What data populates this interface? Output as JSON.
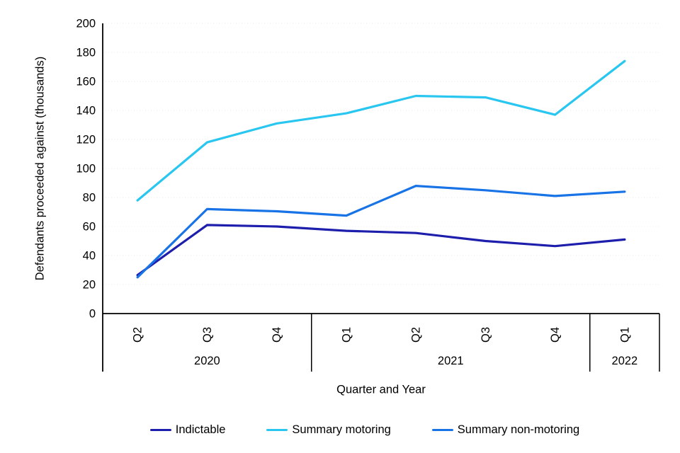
{
  "chart_data": {
    "type": "line",
    "title": "",
    "xlabel": "Quarter and Year",
    "ylabel": "Defendants proceeded against (thousands)",
    "ylim": [
      0,
      200
    ],
    "ytick_step": 20,
    "yticks": [
      0,
      20,
      40,
      60,
      80,
      100,
      120,
      140,
      160,
      180,
      200
    ],
    "grid": "horizontal dotted",
    "legend_position": "bottom",
    "categories": [
      "Q2",
      "Q3",
      "Q4",
      "Q1",
      "Q2",
      "Q3",
      "Q4",
      "Q1"
    ],
    "year_groups": [
      {
        "label": "2020",
        "count": 3
      },
      {
        "label": "2021",
        "count": 4
      },
      {
        "label": "2022",
        "count": 1
      }
    ],
    "series": [
      {
        "name": "Indictable",
        "color": "#1e1ead",
        "values": [
          26.5,
          61,
          60,
          57,
          55.5,
          50,
          46.5,
          51
        ]
      },
      {
        "name": "Summary motoring",
        "color": "#29c6f0",
        "values": [
          78,
          118,
          131,
          138,
          150,
          149,
          137,
          174
        ]
      },
      {
        "name": "Summary non-motoring",
        "color": "#1873e6",
        "values": [
          25,
          72,
          70.5,
          67.5,
          88,
          85,
          81,
          84
        ]
      }
    ],
    "axis_color": "#000000",
    "gridline_color": "#e9e9e9"
  }
}
